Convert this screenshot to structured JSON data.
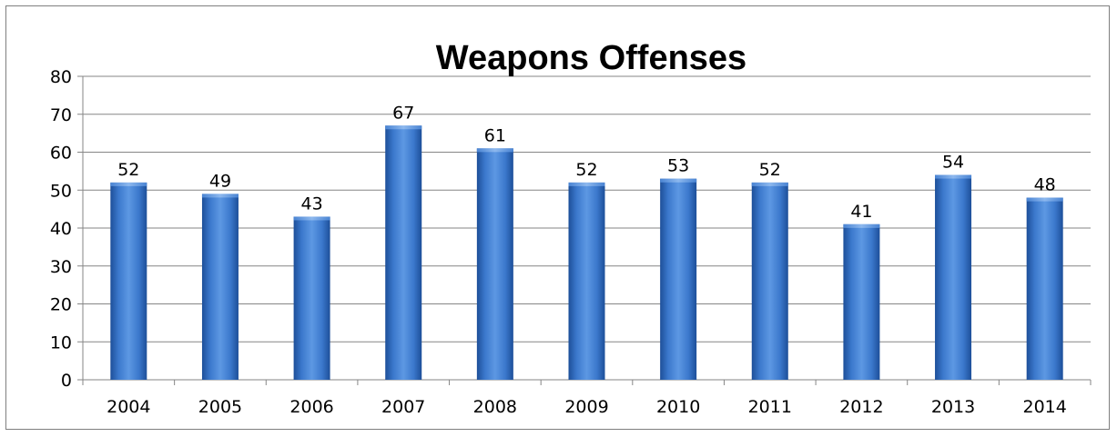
{
  "chart_data": {
    "type": "bar",
    "title": "Weapons Offenses",
    "categories": [
      "2004",
      "2005",
      "2006",
      "2007",
      "2008",
      "2009",
      "2010",
      "2011",
      "2012",
      "2013",
      "2014"
    ],
    "values": [
      52,
      49,
      43,
      67,
      61,
      52,
      53,
      52,
      41,
      54,
      48
    ],
    "xlabel": "",
    "ylabel": "",
    "ylim": [
      0,
      80
    ],
    "yticks": [
      0,
      10,
      20,
      30,
      40,
      50,
      60,
      70,
      80
    ],
    "grid": true,
    "legend": "none",
    "data_labels": true,
    "bar_color": "#3f7fd0"
  }
}
